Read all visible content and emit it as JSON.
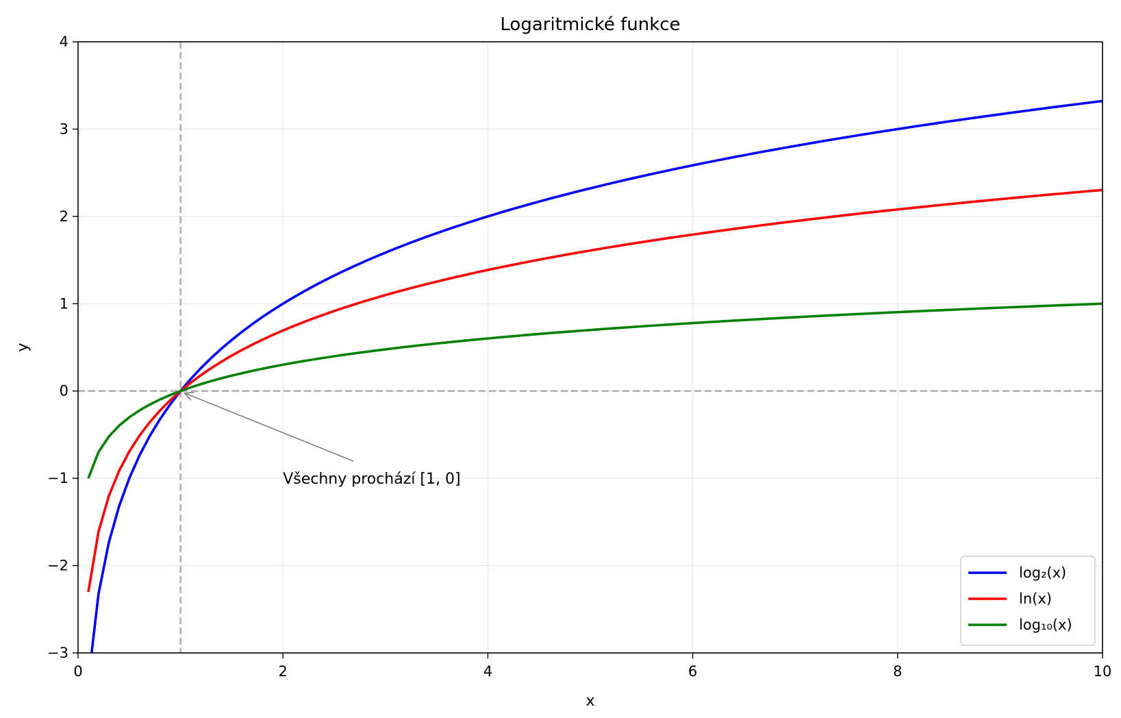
{
  "chart_data": {
    "type": "line",
    "title": "Logaritmické funkce",
    "xlabel": "x",
    "ylabel": "y",
    "xlim": [
      0,
      10
    ],
    "ylim": [
      -3,
      4
    ],
    "xticks": [
      0,
      2,
      4,
      6,
      8,
      10
    ],
    "xtick_labels": [
      "0",
      "2",
      "4",
      "6",
      "8",
      "10"
    ],
    "yticks": [
      -3,
      -2,
      -1,
      0,
      1,
      2,
      3,
      4
    ],
    "ytick_labels": [
      "−3",
      "−2",
      "−1",
      "0",
      "1",
      "2",
      "3",
      "4"
    ],
    "grid": true,
    "legend_position": "bottom-right",
    "x_start": 0.1,
    "x_end": 10,
    "series": [
      {
        "name": "log₂(x)",
        "function": "log2",
        "color": "#0000ff"
      },
      {
        "name": "ln(x)",
        "function": "ln",
        "color": "#ff0000"
      },
      {
        "name": "log₁₀(x)",
        "function": "log10",
        "color": "#008000"
      }
    ],
    "reference_lines": [
      {
        "orientation": "vertical",
        "value": 1,
        "style": "dashed",
        "color": "#b0b0b0"
      },
      {
        "orientation": "horizontal",
        "value": 0,
        "style": "dashed",
        "color": "#b0b0b0"
      }
    ],
    "annotation": {
      "text": "Všechny prochází [1, 0]",
      "point": [
        1,
        0
      ],
      "text_position": [
        2,
        -1
      ],
      "color": "#808080"
    }
  }
}
